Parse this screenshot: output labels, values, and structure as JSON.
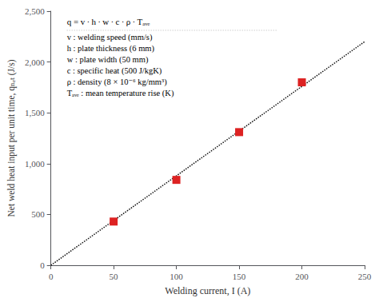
{
  "chart_data": {
    "type": "scatter",
    "xlabel": "Welding current, I (A)",
    "ylabel": "Net weld heat input per unit time, qₙₑₜ (J/s)",
    "xlim": [
      0,
      250
    ],
    "ylim": [
      0,
      2500
    ],
    "xticks": [
      0,
      50,
      100,
      150,
      200,
      250
    ],
    "yticks": [
      0,
      500,
      1000,
      1500,
      2000,
      2500
    ],
    "grid": false,
    "series": [
      {
        "type": "line",
        "x": [
          0,
          250
        ],
        "values": [
          0,
          2200
        ],
        "color": "#111111",
        "line_style": "dotted"
      },
      {
        "type": "scatter",
        "x": [
          50,
          100,
          150,
          200
        ],
        "values": [
          430,
          840,
          1310,
          1800
        ],
        "color": "#DD2222",
        "marker": "square"
      }
    ],
    "annotations": [
      "q = v ∙ h ∙ w ∙ c ∙ ρ ∙ Tₐᵥₑ",
      "v : welding speed (mm/s)",
      "h : plate thickness (6 mm)",
      "w : plate width (50 mm)",
      "c : specific heat (500 J/kgK)",
      "ρ : density (8 × 10⁻⁶ kg/mm³)",
      "Tₐᵥₑ : mean temperature rise (K)"
    ]
  }
}
